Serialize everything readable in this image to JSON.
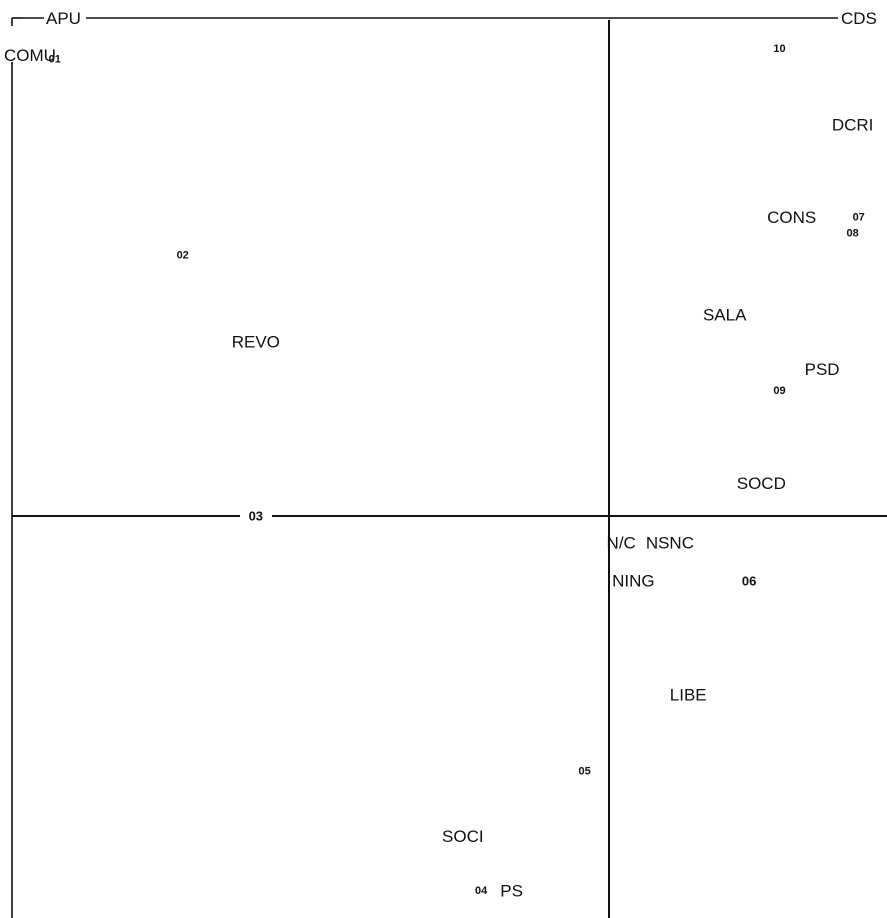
{
  "chart_data": {
    "type": "scatter",
    "title": "",
    "xlabel": "",
    "ylabel": "",
    "axis_end_labels": {
      "x_left": "APU",
      "x_right": "CDS",
      "y_top": "COMU"
    },
    "xlim": [
      -1.0,
      0.45
    ],
    "ylim": [
      -0.75,
      0.95
    ],
    "grid": false,
    "series": [
      {
        "role": "categories",
        "points": [
          {
            "label": "COMU",
            "x": -0.985,
            "y": 0.86
          },
          {
            "label": "REVO",
            "x": -0.58,
            "y": 0.32
          },
          {
            "label": "DCRI",
            "x": 0.4,
            "y": 0.72
          },
          {
            "label": "CONS",
            "x": 0.3,
            "y": 0.55
          },
          {
            "label": "SALA",
            "x": 0.19,
            "y": 0.37
          },
          {
            "label": "PSD",
            "x": 0.35,
            "y": 0.27
          },
          {
            "label": "SOCD",
            "x": 0.25,
            "y": 0.06
          },
          {
            "label": "N/C",
            "x": 0.02,
            "y": -0.05
          },
          {
            "label": "NSNC",
            "x": 0.1,
            "y": -0.05
          },
          {
            "label": "NING",
            "x": 0.04,
            "y": -0.12
          },
          {
            "label": "LIBE",
            "x": 0.13,
            "y": -0.33
          },
          {
            "label": "SOCI",
            "x": -0.24,
            "y": -0.59
          },
          {
            "label": "PS",
            "x": -0.16,
            "y": -0.69
          }
        ]
      },
      {
        "role": "scale-points",
        "points": [
          {
            "label": "01",
            "x": -0.91,
            "y": 0.84
          },
          {
            "label": "02",
            "x": -0.7,
            "y": 0.48
          },
          {
            "label": "03",
            "x": -0.58,
            "y": 0.0
          },
          {
            "label": "04",
            "x": -0.21,
            "y": -0.69
          },
          {
            "label": "05",
            "x": -0.04,
            "y": -0.47
          },
          {
            "label": "06",
            "x": 0.23,
            "y": -0.12
          },
          {
            "label": "07",
            "x": 0.41,
            "y": 0.55
          },
          {
            "label": "08",
            "x": 0.4,
            "y": 0.52
          },
          {
            "label": "09",
            "x": 0.28,
            "y": 0.23
          },
          {
            "label": "10",
            "x": 0.28,
            "y": 0.86
          }
        ]
      }
    ]
  }
}
